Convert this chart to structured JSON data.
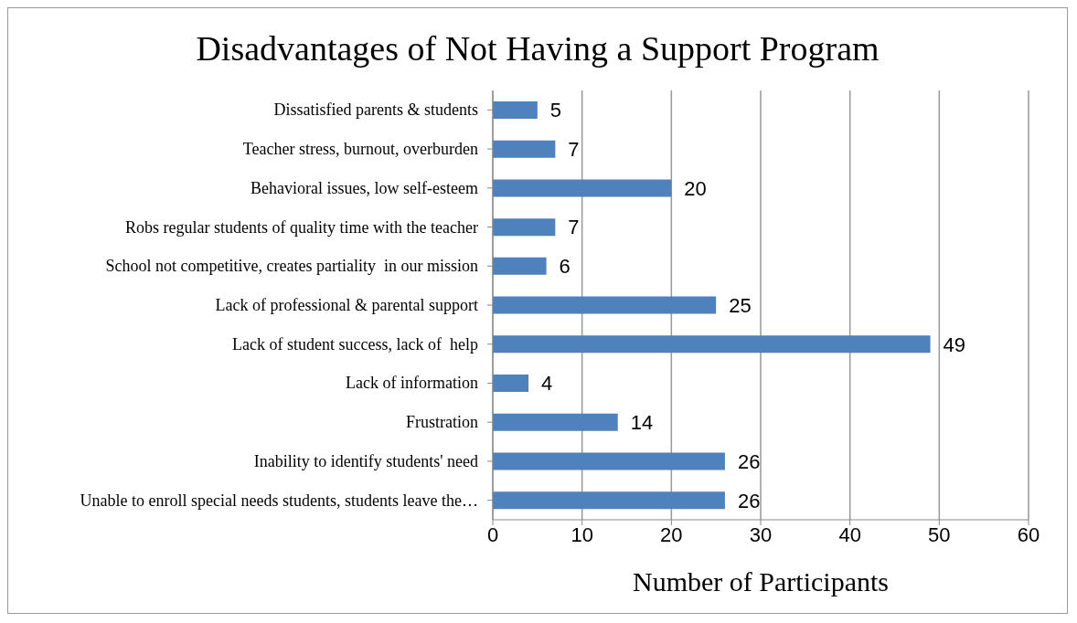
{
  "chart_data": {
    "type": "bar",
    "orientation": "horizontal",
    "title": "Disadvantages of Not Having a Support Program",
    "xlabel": "Number of Participants",
    "categories": [
      "Dissatisfied parents & students",
      "Teacher stress, burnout, overburden",
      "Behavioral issues, low self-esteem",
      "Robs regular students of quality time with the teacher",
      "School not competitive, creates partiality  in our mission",
      "Lack of professional & parental support",
      "Lack of student success, lack of  help",
      "Lack of information",
      "Frustration",
      "Inability to identify students' need",
      "Unable to enroll special needs students, students leave the…"
    ],
    "values": [
      5,
      7,
      20,
      7,
      6,
      25,
      49,
      4,
      14,
      26,
      26
    ],
    "color": "#4f81bd",
    "xlim": [
      0,
      60
    ],
    "xticks": [
      0,
      10,
      20,
      30,
      40,
      50,
      60
    ],
    "grid": "x",
    "data_labels": true
  }
}
